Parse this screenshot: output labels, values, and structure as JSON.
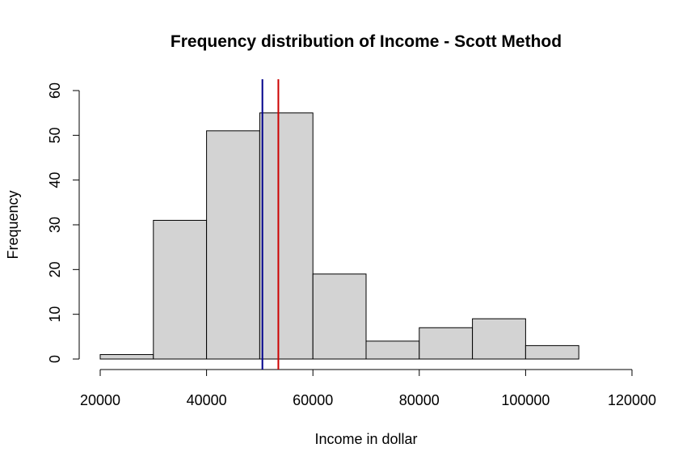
{
  "chart_data": {
    "type": "bar",
    "title": "Frequency distribution of Income - Scott Method",
    "xlabel": "Income in dollar",
    "ylabel": "Frequency",
    "bins": [
      {
        "start": 20000,
        "end": 30000,
        "count": 1
      },
      {
        "start": 30000,
        "end": 40000,
        "count": 31
      },
      {
        "start": 40000,
        "end": 50000,
        "count": 51
      },
      {
        "start": 50000,
        "end": 60000,
        "count": 55
      },
      {
        "start": 60000,
        "end": 70000,
        "count": 19
      },
      {
        "start": 70000,
        "end": 80000,
        "count": 4
      },
      {
        "start": 80000,
        "end": 90000,
        "count": 7
      },
      {
        "start": 90000,
        "end": 100000,
        "count": 9
      },
      {
        "start": 100000,
        "end": 110000,
        "count": 3
      }
    ],
    "xlim": [
      20000,
      120000
    ],
    "ylim": [
      0,
      60
    ],
    "x_ticks": [
      20000,
      40000,
      60000,
      80000,
      100000,
      120000
    ],
    "y_ticks": [
      0,
      10,
      20,
      30,
      40,
      50,
      60
    ],
    "x_tick_labels": [
      "20000",
      "40000",
      "60000",
      "80000",
      "100000",
      "120000"
    ],
    "y_tick_labels": [
      "0",
      "10",
      "20",
      "30",
      "40",
      "50",
      "60"
    ],
    "reference_lines": [
      {
        "x": 50500,
        "color": "#00008b"
      },
      {
        "x": 53500,
        "color": "#cc0000"
      }
    ],
    "bar_fill": "#d3d3d3",
    "grid": false,
    "legend": "none"
  }
}
